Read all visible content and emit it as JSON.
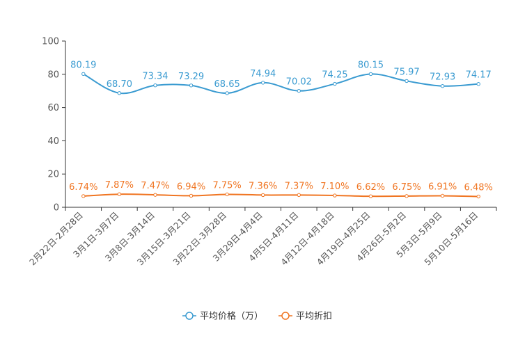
{
  "chart_data": {
    "type": "line",
    "categories": [
      "2月22日-2月28日",
      "3月1日-3月7日",
      "3月8日-3月14日",
      "3月15日-3月21日",
      "3月22日-3月28日",
      "3月29日-4月4日",
      "4月5日-4月11日",
      "4月12日-4月18日",
      "4月19日-4月25日",
      "4月26日-5月2日",
      "5月3日-5月9日",
      "5月10日-5月16日"
    ],
    "series": [
      {
        "name": "平均价格（万）",
        "color": "#3a9bd1",
        "values": [
          80.19,
          68.7,
          73.34,
          73.29,
          68.65,
          74.94,
          70.02,
          74.25,
          80.15,
          75.97,
          72.93,
          74.17
        ],
        "labels": [
          "80.19",
          "68.70",
          "73.34",
          "73.29",
          "68.65",
          "74.94",
          "70.02",
          "74.25",
          "80.15",
          "75.97",
          "72.93",
          "74.17"
        ]
      },
      {
        "name": "平均折扣",
        "color": "#f07522",
        "values": [
          6.74,
          7.87,
          7.47,
          6.94,
          7.75,
          7.36,
          7.37,
          7.1,
          6.62,
          6.75,
          6.91,
          6.48
        ],
        "labels": [
          "6.74%",
          "7.87%",
          "7.47%",
          "6.94%",
          "7.75%",
          "7.36%",
          "7.37%",
          "7.10%",
          "6.62%",
          "6.75%",
          "6.91%",
          "6.48%"
        ]
      }
    ],
    "y_ticks": [
      "0",
      "20",
      "40",
      "60",
      "80",
      "100"
    ],
    "ylim": [
      0,
      100
    ],
    "legend_position": "bottom-center",
    "grid": false
  }
}
